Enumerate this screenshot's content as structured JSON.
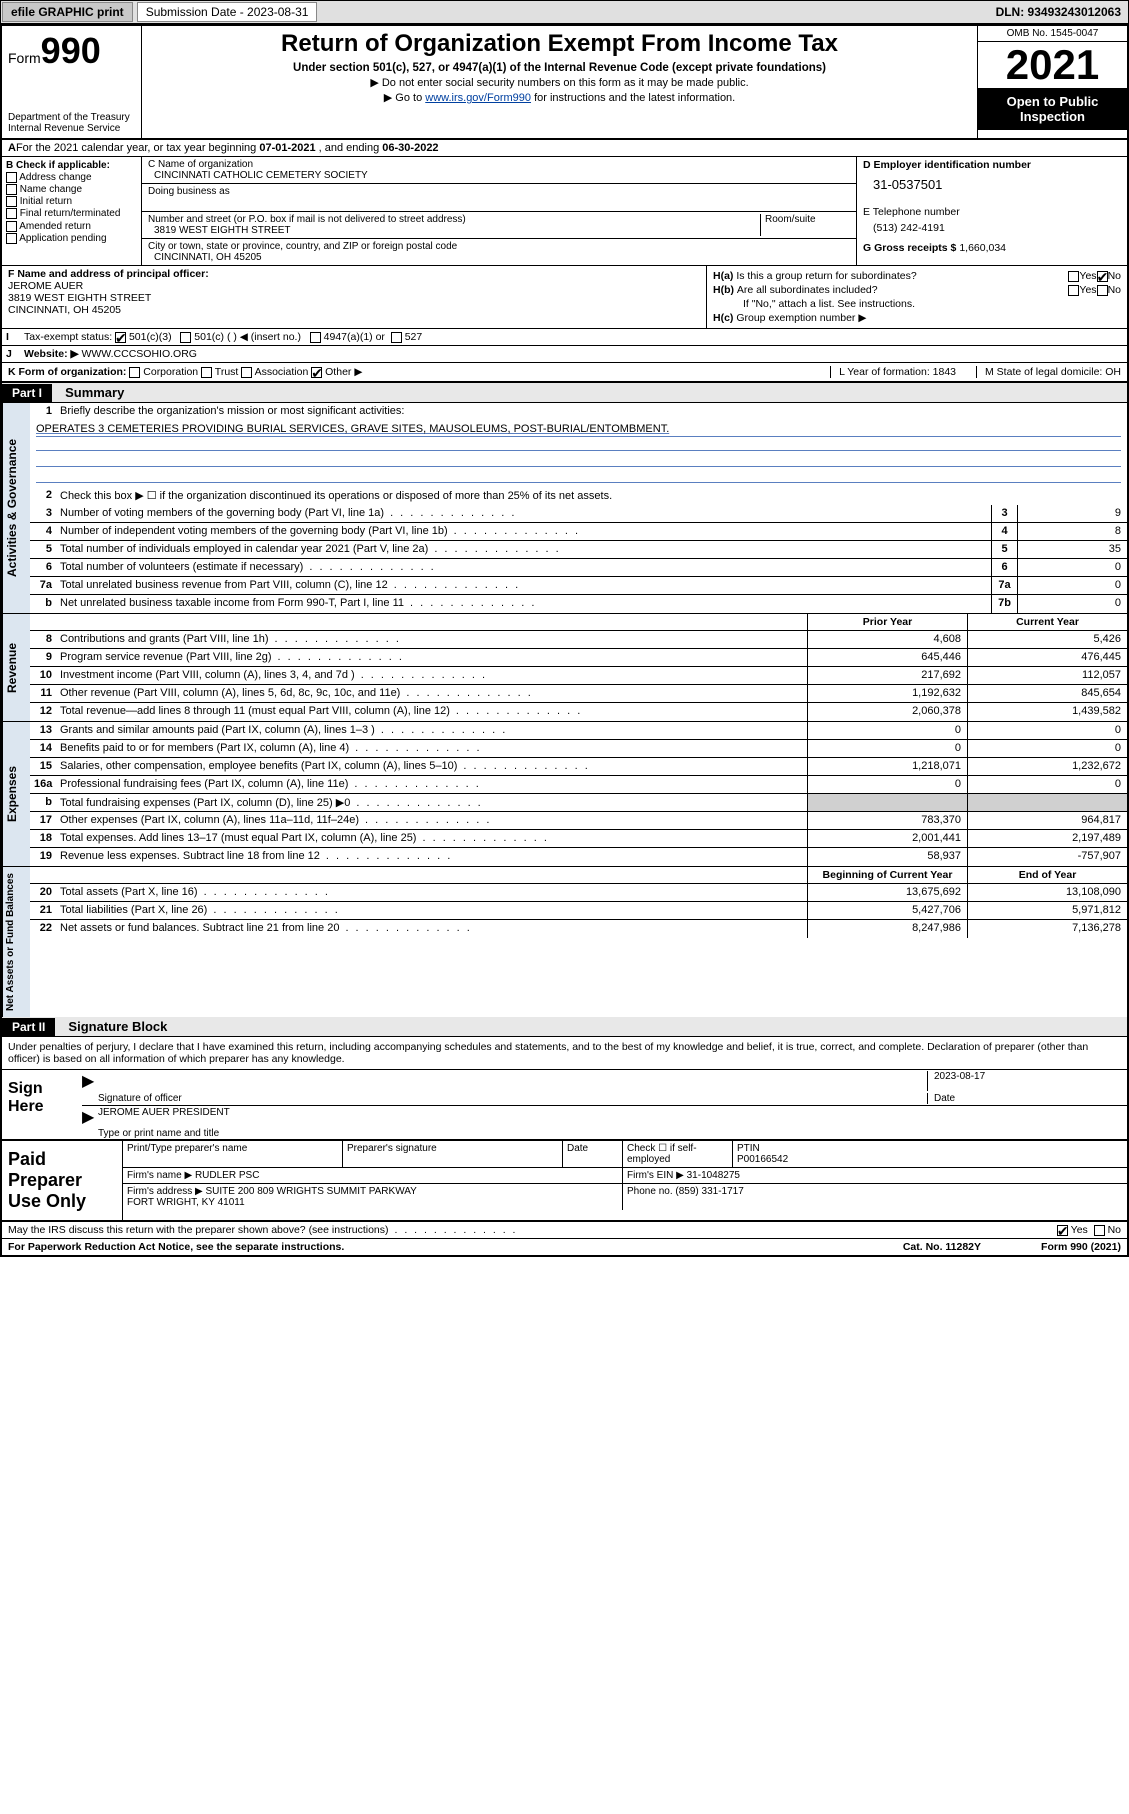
{
  "topbar": {
    "efile": "efile GRAPHIC print",
    "submission_label": "Submission Date - 2023-08-31",
    "dln": "DLN: 93493243012063"
  },
  "header": {
    "form_prefix": "Form",
    "form_number": "990",
    "dept": "Department of the Treasury",
    "irs": "Internal Revenue Service",
    "title": "Return of Organization Exempt From Income Tax",
    "sub1": "Under section 501(c), 527, or 4947(a)(1) of the Internal Revenue Code (except private foundations)",
    "sub2": "▶ Do not enter social security numbers on this form as it may be made public.",
    "sub3_pre": "▶ Go to ",
    "sub3_link": "www.irs.gov/Form990",
    "sub3_post": " for instructions and the latest information.",
    "omb": "OMB No. 1545-0047",
    "year": "2021",
    "inspection": "Open to Public Inspection"
  },
  "A": {
    "text_pre": "For the 2021 calendar year, or tax year beginning ",
    "begin": "07-01-2021",
    "mid": " , and ending ",
    "end": "06-30-2022"
  },
  "B": {
    "label": "B Check if applicable:",
    "items": [
      "Address change",
      "Name change",
      "Initial return",
      "Final return/terminated",
      "Amended return",
      "Application pending"
    ]
  },
  "C": {
    "name_label": "C Name of organization",
    "name": "CINCINNATI CATHOLIC CEMETERY SOCIETY",
    "dba_label": "Doing business as",
    "street_label": "Number and street (or P.O. box if mail is not delivered to street address)",
    "room_label": "Room/suite",
    "street": "3819 WEST EIGHTH STREET",
    "city_label": "City or town, state or province, country, and ZIP or foreign postal code",
    "city": "CINCINNATI, OH  45205"
  },
  "D": {
    "label": "D Employer identification number",
    "ein": "31-0537501"
  },
  "E": {
    "label": "E Telephone number",
    "tel": "(513) 242-4191"
  },
  "G": {
    "label": "G Gross receipts $",
    "val": "1,660,034"
  },
  "F": {
    "label": "F Name and address of principal officer:",
    "name": "JEROME AUER",
    "street": "3819 WEST EIGHTH STREET",
    "city": "CINCINNATI, OH  45205"
  },
  "H": {
    "a": "Is this a group return for subordinates?",
    "b": "Are all subordinates included?",
    "b_note": "If \"No,\" attach a list. See instructions.",
    "c": "Group exemption number ▶",
    "ha_pre": "H(a)",
    "hb_pre": "H(b)",
    "hc_pre": "H(c)",
    "yes": "Yes",
    "no": "No"
  },
  "I": {
    "label": "Tax-exempt status:",
    "opt1": "501(c)(3)",
    "opt2": "501(c) (   ) ◀ (insert no.)",
    "opt3": "4947(a)(1) or",
    "opt4": "527"
  },
  "J": {
    "label": "Website: ▶",
    "val": "WWW.CCCSOHIO.ORG"
  },
  "K": {
    "label": "K Form of organization:",
    "opts": [
      "Corporation",
      "Trust",
      "Association",
      "Other ▶"
    ],
    "L": "L Year of formation: 1843",
    "M": "M State of legal domicile: OH"
  },
  "partI": {
    "label": "Part I",
    "title": "Summary",
    "l1": "Briefly describe the organization's mission or most significant activities:",
    "mission": "OPERATES 3 CEMETERIES PROVIDING BURIAL SERVICES, GRAVE SITES, MAUSOLEUMS, POST-BURIAL/ENTOMBMENT.",
    "l2": "Check this box ▶ ☐ if the organization discontinued its operations or disposed of more than 25% of its net assets.",
    "vlab_gov": "Activities & Governance",
    "vlab_rev": "Revenue",
    "vlab_exp": "Expenses",
    "vlab_net": "Net Assets or Fund Balances",
    "prior": "Prior Year",
    "current": "Current Year",
    "boy": "Beginning of Current Year",
    "eoy": "End of Year",
    "lines_gov": [
      {
        "n": "3",
        "t": "Number of voting members of the governing body (Part VI, line 1a)",
        "box": "3",
        "v": "9"
      },
      {
        "n": "4",
        "t": "Number of independent voting members of the governing body (Part VI, line 1b)",
        "box": "4",
        "v": "8"
      },
      {
        "n": "5",
        "t": "Total number of individuals employed in calendar year 2021 (Part V, line 2a)",
        "box": "5",
        "v": "35"
      },
      {
        "n": "6",
        "t": "Total number of volunteers (estimate if necessary)",
        "box": "6",
        "v": "0"
      },
      {
        "n": "7a",
        "t": "Total unrelated business revenue from Part VIII, column (C), line 12",
        "box": "7a",
        "v": "0"
      },
      {
        "n": "b",
        "t": "Net unrelated business taxable income from Form 990-T, Part I, line 11",
        "box": "7b",
        "v": "0"
      }
    ],
    "lines_rev": [
      {
        "n": "8",
        "t": "Contributions and grants (Part VIII, line 1h)",
        "p": "4,608",
        "c": "5,426"
      },
      {
        "n": "9",
        "t": "Program service revenue (Part VIII, line 2g)",
        "p": "645,446",
        "c": "476,445"
      },
      {
        "n": "10",
        "t": "Investment income (Part VIII, column (A), lines 3, 4, and 7d )",
        "p": "217,692",
        "c": "112,057"
      },
      {
        "n": "11",
        "t": "Other revenue (Part VIII, column (A), lines 5, 6d, 8c, 9c, 10c, and 11e)",
        "p": "1,192,632",
        "c": "845,654"
      },
      {
        "n": "12",
        "t": "Total revenue—add lines 8 through 11 (must equal Part VIII, column (A), line 12)",
        "p": "2,060,378",
        "c": "1,439,582"
      }
    ],
    "lines_exp": [
      {
        "n": "13",
        "t": "Grants and similar amounts paid (Part IX, column (A), lines 1–3 )",
        "p": "0",
        "c": "0"
      },
      {
        "n": "14",
        "t": "Benefits paid to or for members (Part IX, column (A), line 4)",
        "p": "0",
        "c": "0"
      },
      {
        "n": "15",
        "t": "Salaries, other compensation, employee benefits (Part IX, column (A), lines 5–10)",
        "p": "1,218,071",
        "c": "1,232,672"
      },
      {
        "n": "16a",
        "t": "Professional fundraising fees (Part IX, column (A), line 11e)",
        "p": "0",
        "c": "0"
      },
      {
        "n": "b",
        "t": "Total fundraising expenses (Part IX, column (D), line 25) ▶0",
        "p": "",
        "c": "",
        "shade": true
      },
      {
        "n": "17",
        "t": "Other expenses (Part IX, column (A), lines 11a–11d, 11f–24e)",
        "p": "783,370",
        "c": "964,817"
      },
      {
        "n": "18",
        "t": "Total expenses. Add lines 13–17 (must equal Part IX, column (A), line 25)",
        "p": "2,001,441",
        "c": "2,197,489"
      },
      {
        "n": "19",
        "t": "Revenue less expenses. Subtract line 18 from line 12",
        "p": "58,937",
        "c": "-757,907"
      }
    ],
    "lines_net": [
      {
        "n": "20",
        "t": "Total assets (Part X, line 16)",
        "p": "13,675,692",
        "c": "13,108,090"
      },
      {
        "n": "21",
        "t": "Total liabilities (Part X, line 26)",
        "p": "5,427,706",
        "c": "5,971,812"
      },
      {
        "n": "22",
        "t": "Net assets or fund balances. Subtract line 21 from line 20",
        "p": "8,247,986",
        "c": "7,136,278"
      }
    ]
  },
  "partII": {
    "label": "Part II",
    "title": "Signature Block",
    "decl": "Under penalties of perjury, I declare that I have examined this return, including accompanying schedules and statements, and to the best of my knowledge and belief, it is true, correct, and complete. Declaration of preparer (other than officer) is based on all information of which preparer has any knowledge.",
    "sign_here": "Sign Here",
    "sig_officer": "Signature of officer",
    "sig_date": "2023-08-17",
    "date_lbl": "Date",
    "officer_name": "JEROME AUER PRESIDENT",
    "type_name": "Type or print name and title",
    "paid": "Paid Preparer Use Only",
    "pt_name": "Print/Type preparer's name",
    "pt_sig": "Preparer's signature",
    "pt_date": "Date",
    "pt_check": "Check ☐ if self-employed",
    "ptin_lbl": "PTIN",
    "ptin": "P00166542",
    "firm_name_lbl": "Firm's name    ▶",
    "firm_name": "RUDLER PSC",
    "firm_ein_lbl": "Firm's EIN ▶",
    "firm_ein": "31-1048275",
    "firm_addr_lbl": "Firm's address ▶",
    "firm_addr": "SUITE 200 809 WRIGHTS SUMMIT PARKWAY\nFORT WRIGHT, KY  41011",
    "phone_lbl": "Phone no.",
    "phone": "(859) 331-1717"
  },
  "footer": {
    "may": "May the IRS discuss this return with the preparer shown above? (see instructions)",
    "yes": "Yes",
    "no": "No",
    "pra": "For Paperwork Reduction Act Notice, see the separate instructions.",
    "cat": "Cat. No. 11282Y",
    "form": "Form 990 (2021)"
  }
}
